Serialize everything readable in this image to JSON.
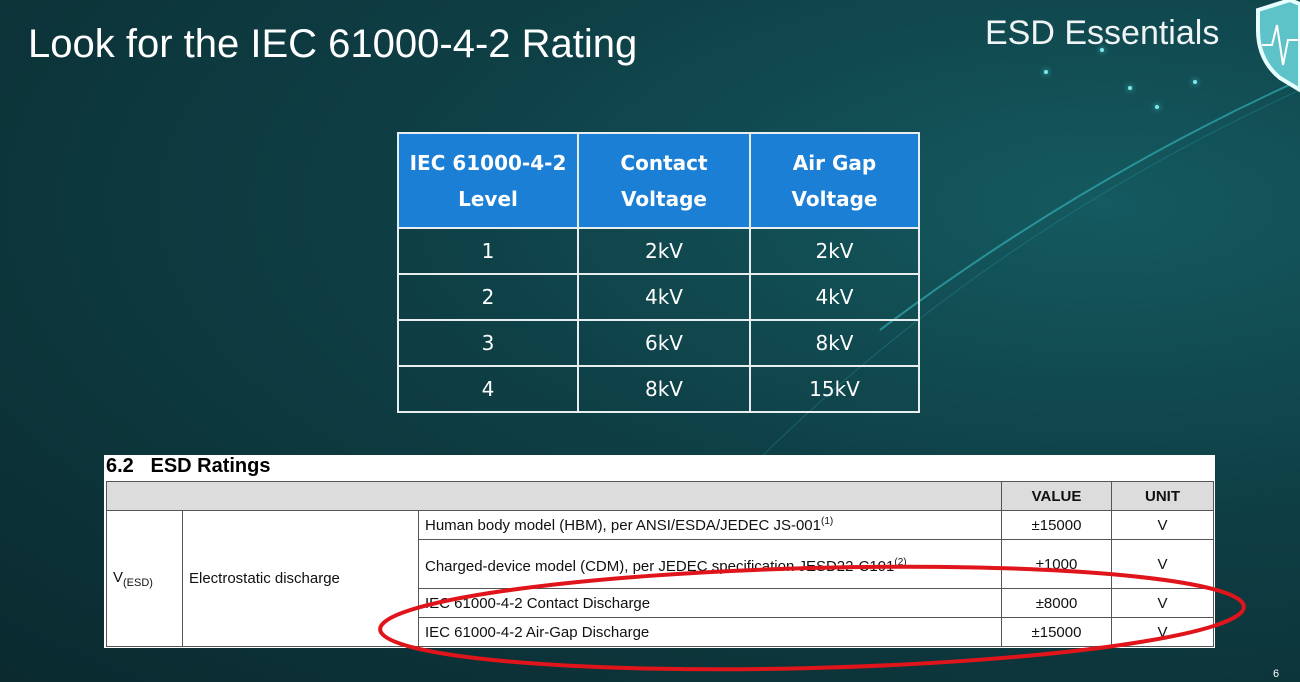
{
  "slide": {
    "title": "Look for the IEC 61000-4-2 Rating",
    "brand": "ESD Essentials",
    "page_number": "6",
    "highlight_color": "#e0151b"
  },
  "level_table": {
    "headers": [
      "IEC 61000-4-2 Level",
      "Contact Voltage",
      "Air Gap Voltage"
    ],
    "rows": [
      [
        "1",
        "2kV",
        "2kV"
      ],
      [
        "2",
        "4kV",
        "4kV"
      ],
      [
        "3",
        "6kV",
        "8kV"
      ],
      [
        "4",
        "8kV",
        "15kV"
      ]
    ]
  },
  "esd_ratings": {
    "section": "6.2   ESD Ratings",
    "headers": {
      "value": "VALUE",
      "unit": "UNIT"
    },
    "symbol": "V",
    "symbol_sub": "(ESD)",
    "parameter": "Electrostatic discharge",
    "rows": [
      {
        "condition": "Human body model (HBM), per ANSI/ESDA/JEDEC JS-001",
        "note": "(1)",
        "value": "±15000",
        "unit": "V"
      },
      {
        "condition": "Charged-device model (CDM), per JEDEC specification JESD22-C101",
        "note": "(2)",
        "value": "±1000",
        "unit": "V"
      },
      {
        "condition": "IEC 61000-4-2 Contact Discharge",
        "note": "",
        "value": "±8000",
        "unit": "V"
      },
      {
        "condition": "IEC 61000-4-2 Air-Gap Discharge",
        "note": "",
        "value": "±15000",
        "unit": "V"
      }
    ]
  }
}
